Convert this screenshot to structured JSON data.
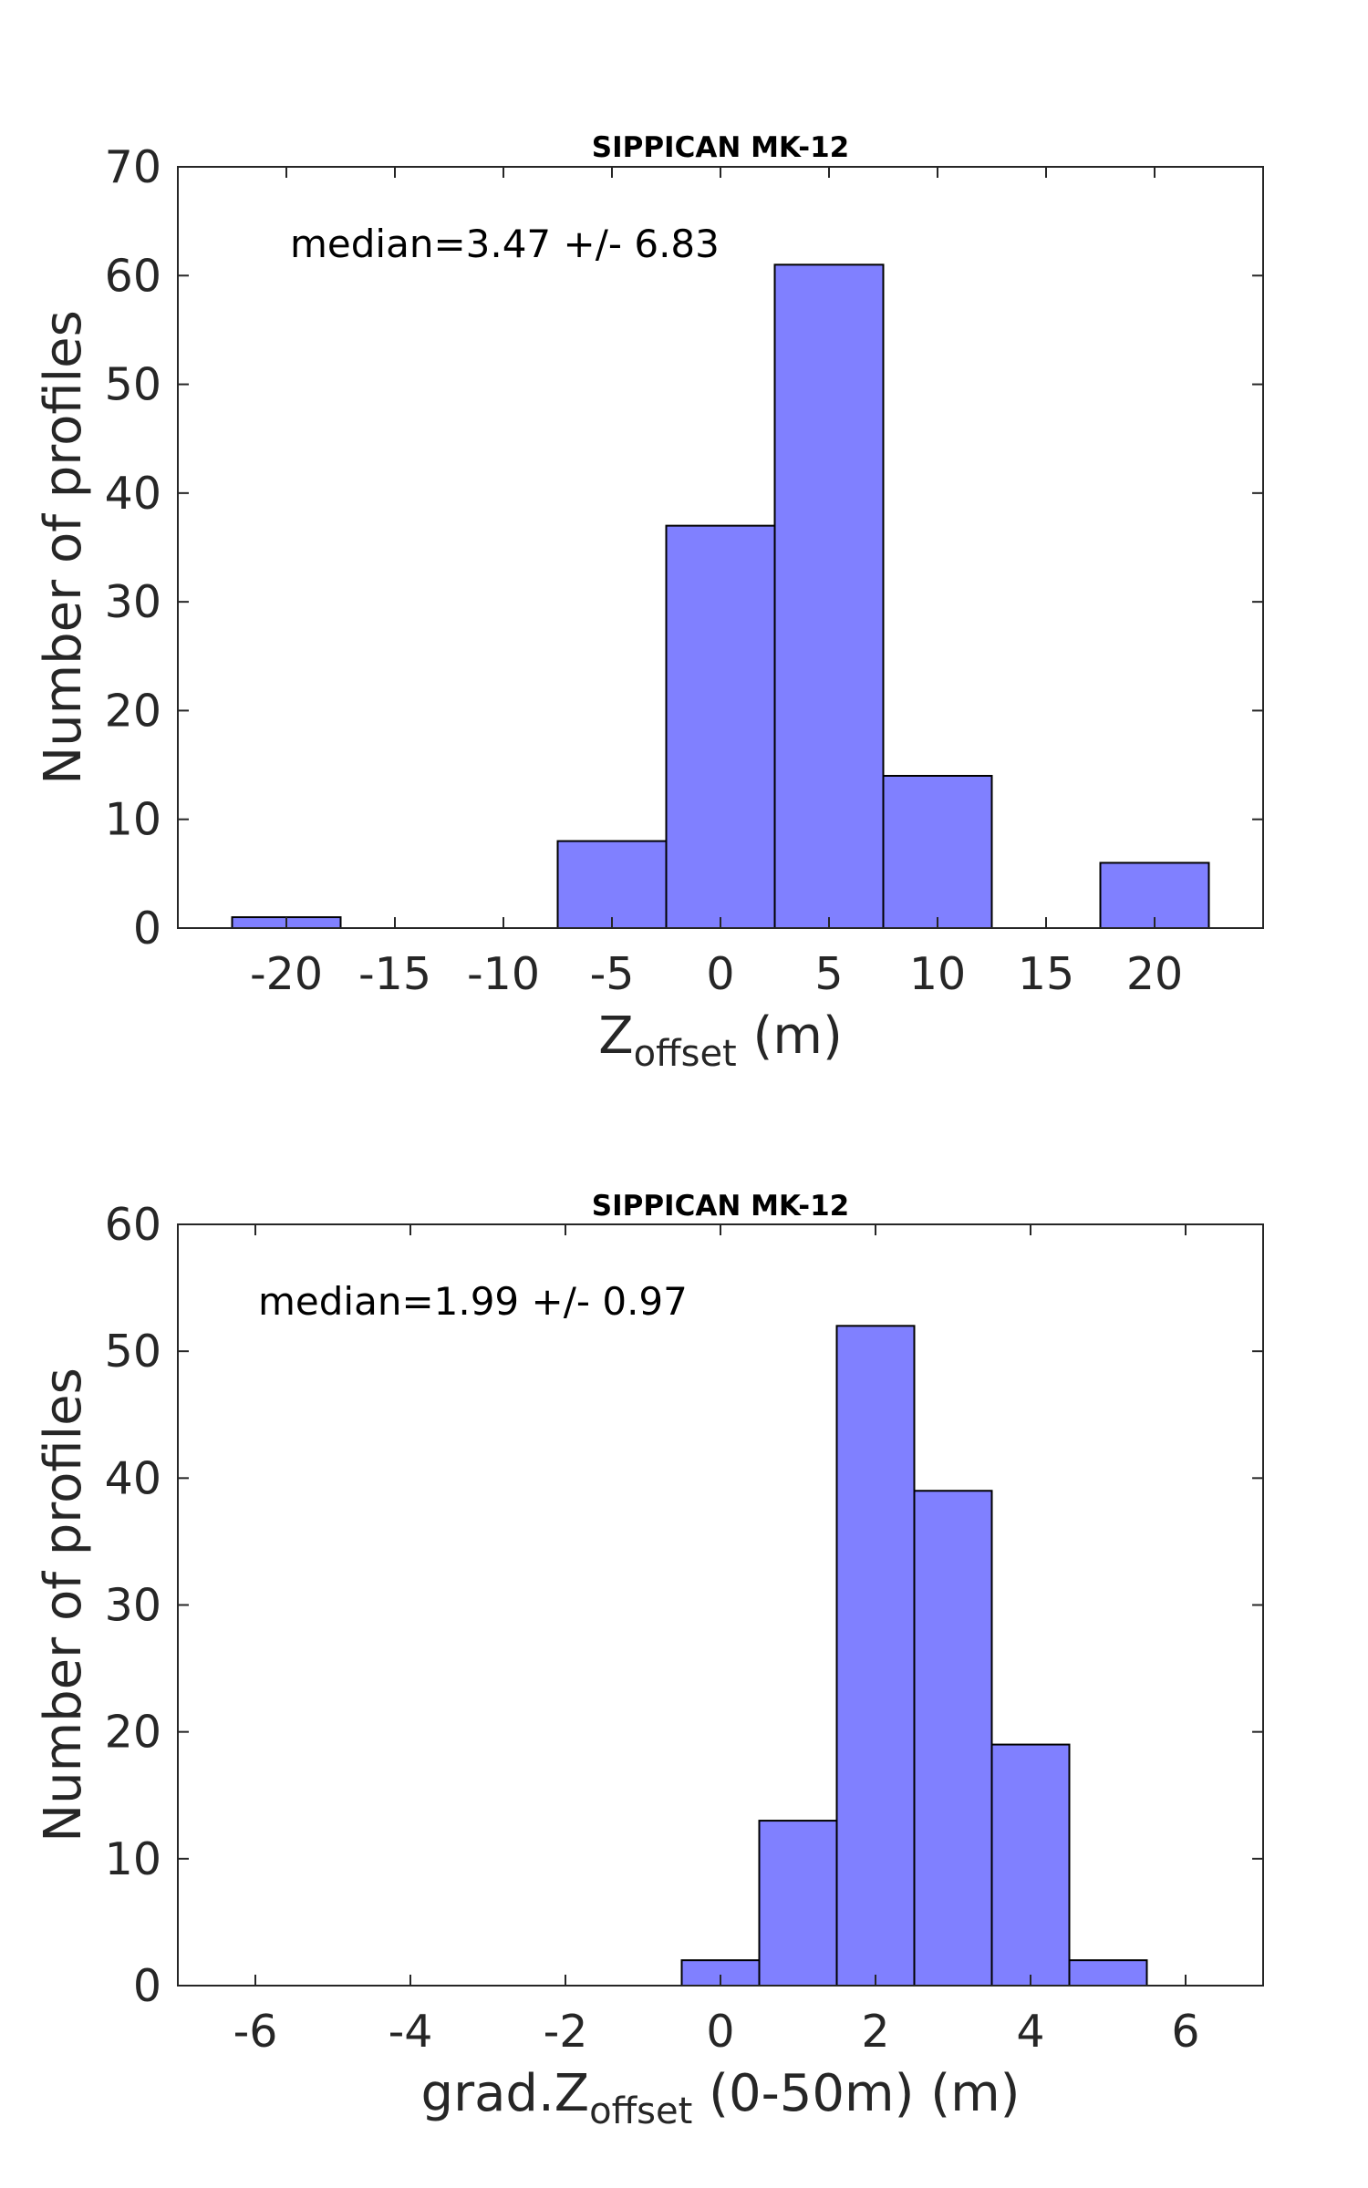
{
  "chart_data": [
    {
      "type": "bar",
      "title": "SIPPICAN MK-12",
      "annotation": "median=3.47 +/- 6.83",
      "xlabel": {
        "main": "Z",
        "sub": "offset",
        "rest": " (m)"
      },
      "ylabel": "Number of profiles",
      "xlim": [
        -25,
        25
      ],
      "ylim": [
        0,
        70
      ],
      "xticks": [
        -20,
        -15,
        -10,
        -5,
        0,
        5,
        10,
        15,
        20
      ],
      "xtick_labels": [
        "-20",
        "-15",
        "-10",
        "-5",
        "0",
        "5",
        "10",
        "15",
        "20"
      ],
      "yticks": [
        0,
        10,
        20,
        30,
        40,
        50,
        60,
        70
      ],
      "ytick_labels": [
        "0",
        "10",
        "20",
        "30",
        "40",
        "50",
        "60",
        "70"
      ],
      "bins": [
        {
          "start": -22.5,
          "end": -17.5,
          "value": 1
        },
        {
          "start": -17.5,
          "end": -12.5,
          "value": 0
        },
        {
          "start": -12.5,
          "end": -7.5,
          "value": 0
        },
        {
          "start": -7.5,
          "end": -2.5,
          "value": 8
        },
        {
          "start": -2.5,
          "end": 2.5,
          "value": 37
        },
        {
          "start": 2.5,
          "end": 7.5,
          "value": 61
        },
        {
          "start": 7.5,
          "end": 12.5,
          "value": 14
        },
        {
          "start": 12.5,
          "end": 17.5,
          "value": 0
        },
        {
          "start": 17.5,
          "end": 22.5,
          "value": 6
        }
      ],
      "bar_color": "#8080ff",
      "grid": false
    },
    {
      "type": "bar",
      "title": "SIPPICAN MK-12",
      "annotation": "median=1.99 +/- 0.97",
      "xlabel": {
        "main": "grad.Z",
        "sub": "offset",
        "rest": " (0-50m) (m)"
      },
      "ylabel": "Number of profiles",
      "xlim": [
        -7,
        7
      ],
      "ylim": [
        0,
        60
      ],
      "xticks": [
        -6,
        -4,
        -2,
        0,
        2,
        4,
        6
      ],
      "xtick_labels": [
        "-6",
        "-4",
        "-2",
        "0",
        "2",
        "4",
        "6"
      ],
      "yticks": [
        0,
        10,
        20,
        30,
        40,
        50,
        60
      ],
      "ytick_labels": [
        "0",
        "10",
        "20",
        "30",
        "40",
        "50",
        "60"
      ],
      "bins": [
        {
          "start": -0.5,
          "end": 0.5,
          "value": 2
        },
        {
          "start": 0.5,
          "end": 1.5,
          "value": 13
        },
        {
          "start": 1.5,
          "end": 2.5,
          "value": 52
        },
        {
          "start": 2.5,
          "end": 3.5,
          "value": 39
        },
        {
          "start": 3.5,
          "end": 4.5,
          "value": 19
        },
        {
          "start": 4.5,
          "end": 5.5,
          "value": 2
        }
      ],
      "bar_color": "#8080ff",
      "grid": false
    }
  ]
}
